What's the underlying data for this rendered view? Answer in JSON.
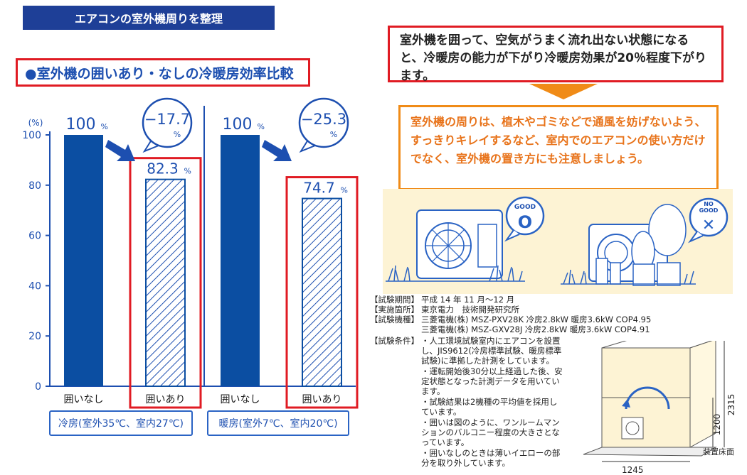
{
  "title": "エアコンの室外機周りを整理",
  "chart_data": {
    "type": "bar",
    "title": "●室外機の囲いあり・なしの冷暖房効率比較",
    "ylabel": "(%)",
    "ylim": [
      0,
      100
    ],
    "yticks": [
      "0",
      "20",
      "40",
      "60",
      "80",
      "100"
    ],
    "groups": [
      {
        "label": "冷房(室外35℃、室内27℃)",
        "bars": [
          {
            "category": "囲いなし",
            "value": 100,
            "value_label": "100",
            "unit": "%"
          },
          {
            "category": "囲いあり",
            "value": 82.3,
            "value_label": "82.3",
            "unit": "%"
          }
        ],
        "diff_label": "−17.7",
        "diff_unit": "%"
      },
      {
        "label": "暖房(室外7℃、室内20℃)",
        "bars": [
          {
            "category": "囲いなし",
            "value": 100,
            "value_label": "100",
            "unit": "%"
          },
          {
            "category": "囲いあり",
            "value": 74.7,
            "value_label": "74.7",
            "unit": "%"
          }
        ],
        "diff_label": "−25.3",
        "diff_unit": "%"
      }
    ],
    "colors": {
      "solid": "#0b4ea2",
      "hatch": "#1d4fb0"
    }
  },
  "message_top": "室外機を囲って、空気がうまく流れ出ない状態になると、冷暖房の能力が下がり冷暖房効果が20％程度下がります。",
  "message_tip": "室外機の周りは、植木やゴミなどで通風を妨げないよう、すっきりキレイするなど、室内でのエアコンの使い方だけでなく、室外機の置き方にも注意しましょう。",
  "illustration": {
    "good_label": "GOOD",
    "good_mark": "O",
    "nogood_label_1": "NO",
    "nogood_label_2": "GOOD",
    "nogood_mark": "✕"
  },
  "test_info": {
    "period_label": "【試験期間】",
    "period": "平成 14 年 11 月〜12 月",
    "place_label": "【実施箇所】",
    "place": "東京電力　技術開発研究所",
    "model_label": "【試験機種】",
    "model_1": "三菱電機(株) MSZ-PXV28K  冷房2.8kW 暖房3.6kW COP4.95",
    "model_2": "三菱電機(株) MSZ-GXV28J  冷房2.8kW 暖房3.6kW COP4.91",
    "cond_label": "【試験条件】",
    "conds": [
      "・人工環境試験室内にエアコンを設置し、JIS9612(冷房標準試験、暖房標準試験)に準拠した計測をしています。",
      "・運転開始後30分以上経過した後、安定状態となった計測データを用いています。",
      "・試験結果は2機種の平均値を採用しています。",
      "・囲いは図のように、ワンルームマンションのバルコニー程度の大きさとなっています。",
      "・囲いなしのときは薄いイエローの部分を取り外しています。"
    ]
  },
  "diagram": {
    "height_label": "2315",
    "inner_height_label": "1200",
    "width_label": "1245",
    "floor_label": "装置床面"
  }
}
